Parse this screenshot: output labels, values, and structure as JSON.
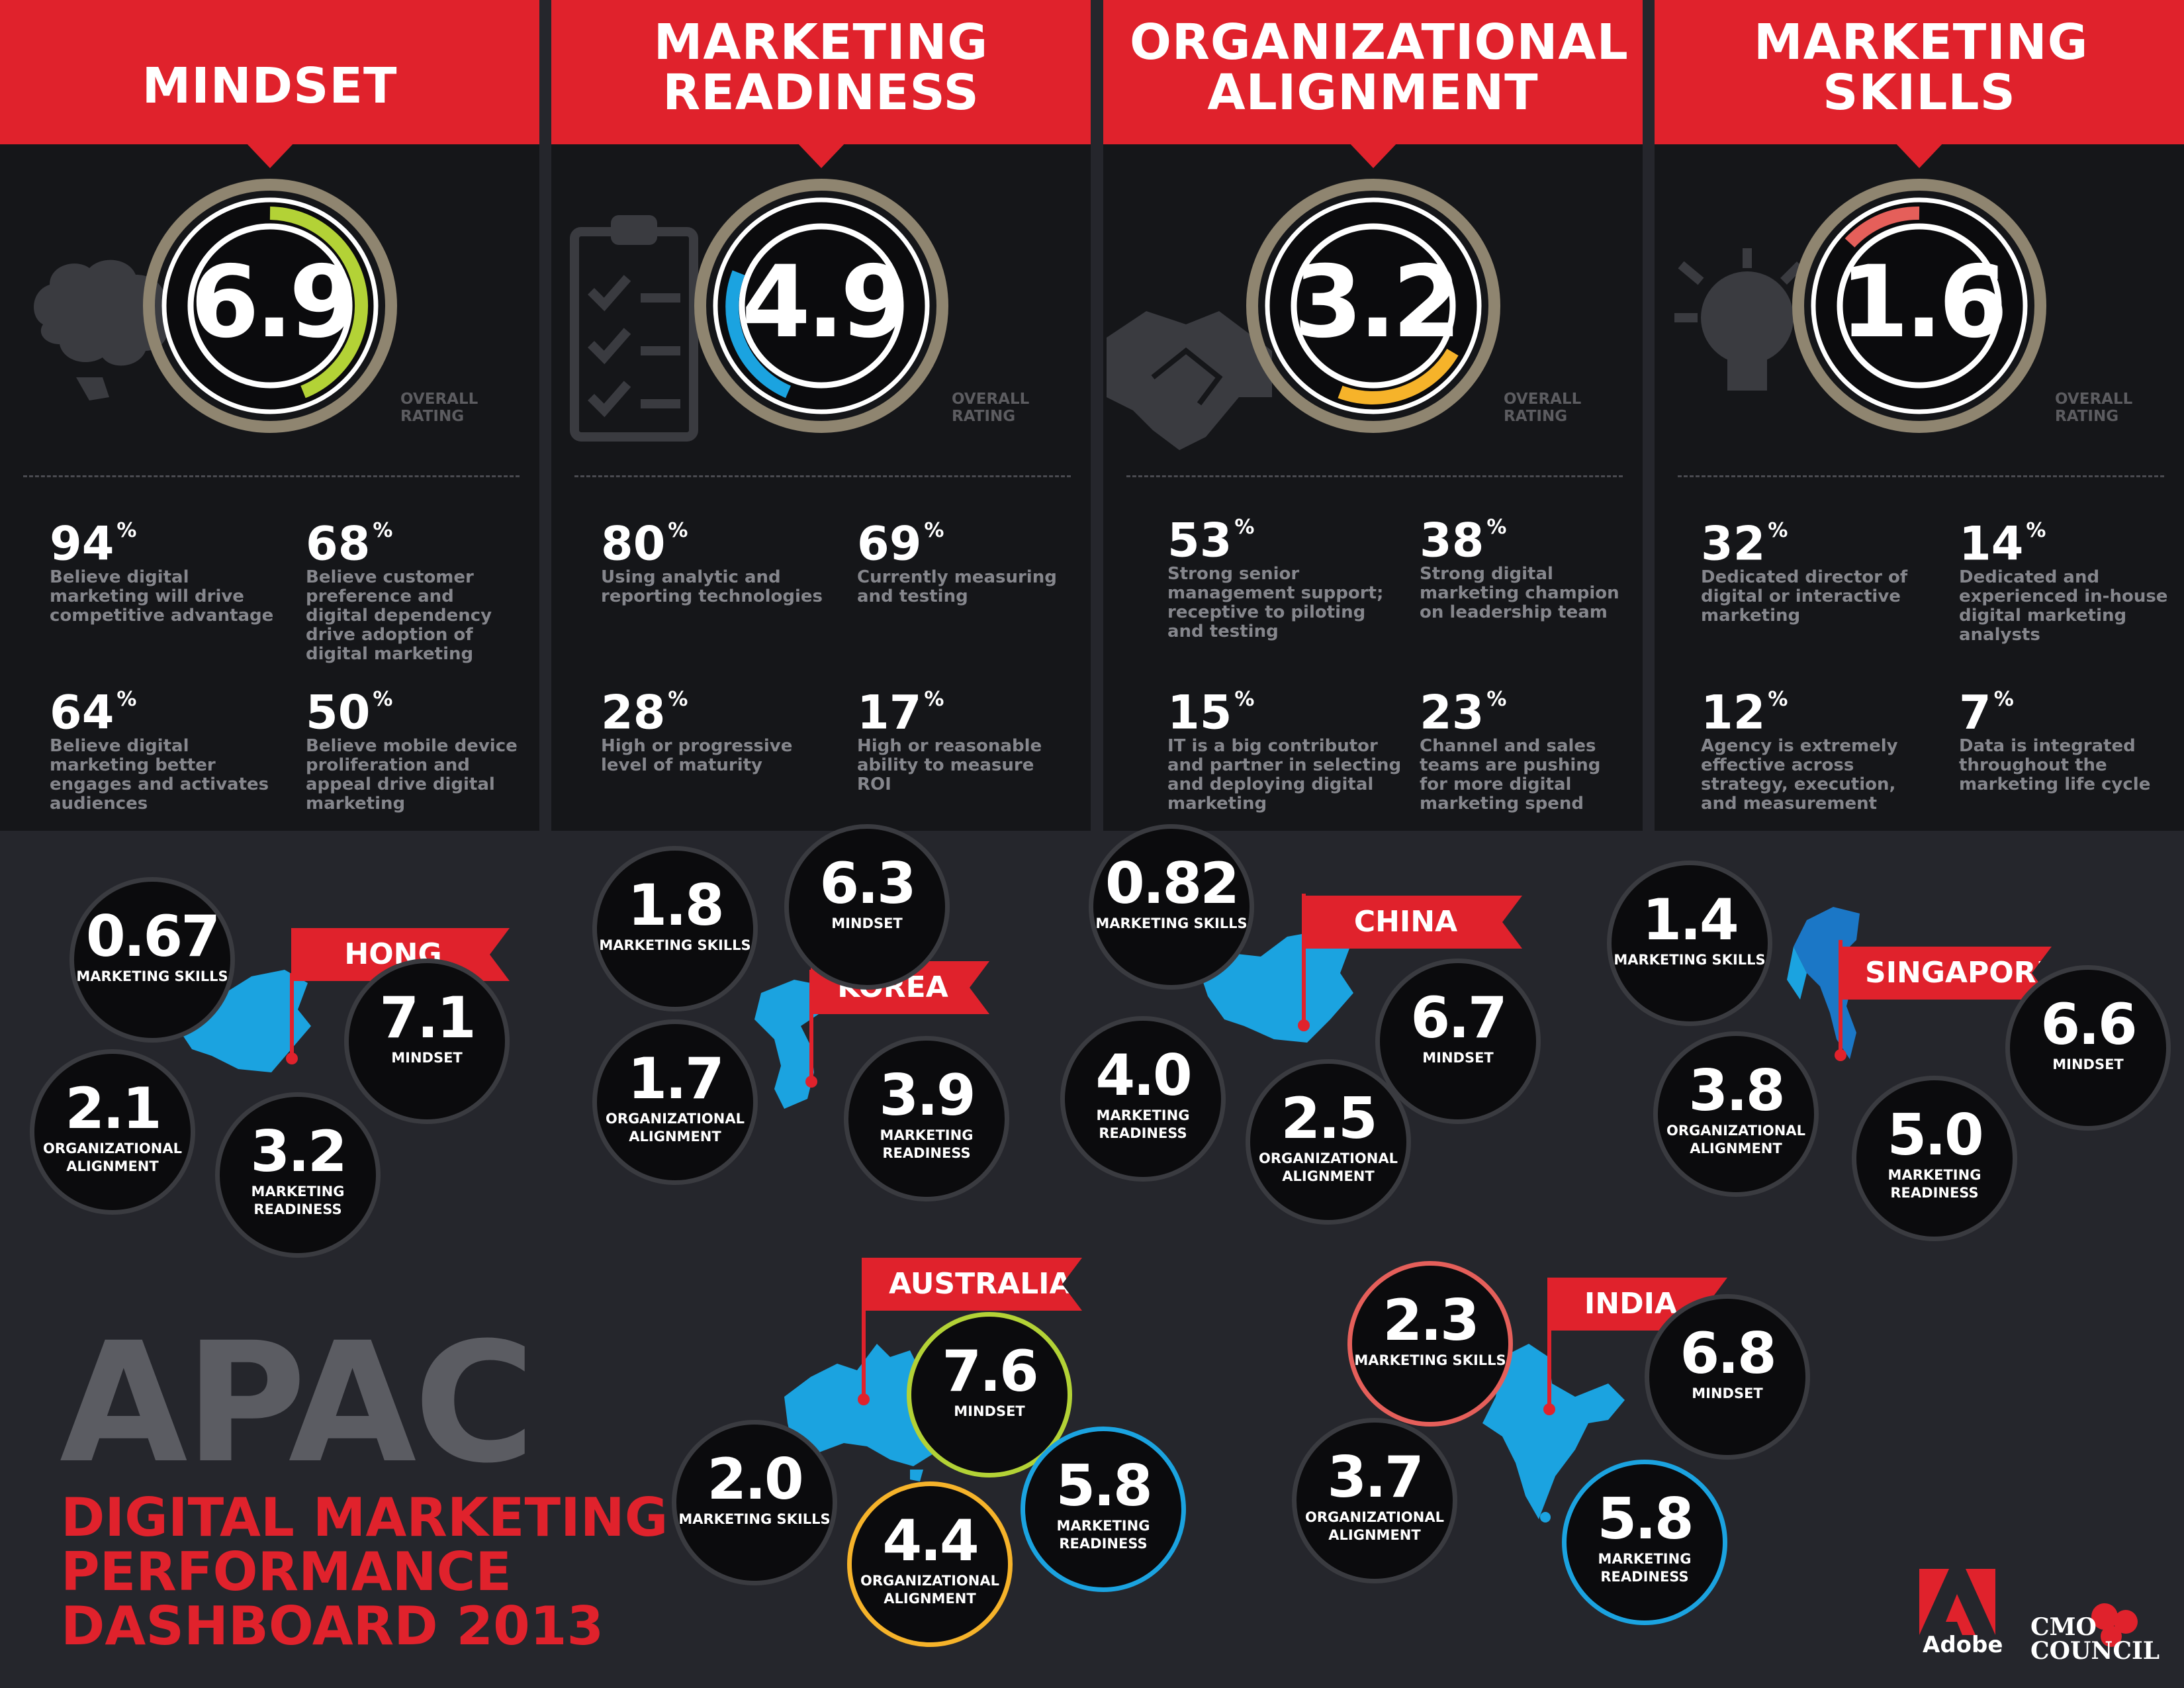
{
  "categories": [
    {
      "title": "Mindset",
      "rating": "6.9",
      "rating_caption": "OVERALL RATING",
      "ring_color": "#b3d236",
      "icon": "brain-icon",
      "stats": [
        {
          "pct": "94",
          "unit": "%",
          "desc": "Believe digital marketing will drive competitive advantage"
        },
        {
          "pct": "68",
          "unit": "%",
          "desc": "Believe customer preference and digital dependency drive adoption of digital marketing"
        },
        {
          "pct": "64",
          "unit": "%",
          "desc": "Believe digital marketing better engages and activates audiences"
        },
        {
          "pct": "50",
          "unit": "%",
          "desc": "Believe mobile device proliferation and appeal drive digital marketing"
        }
      ]
    },
    {
      "title": "Marketing Readiness",
      "rating": "4.9",
      "rating_caption": "OVERALL RATING",
      "ring_color": "#1ba3e0",
      "icon": "clipboard-checklist-icon",
      "stats": [
        {
          "pct": "80",
          "unit": "%",
          "desc": "Using analytic and reporting technologies"
        },
        {
          "pct": "69",
          "unit": "%",
          "desc": "Currently measuring and testing"
        },
        {
          "pct": "28",
          "unit": "%",
          "desc": "High or progressive level of maturity"
        },
        {
          "pct": "17",
          "unit": "%",
          "desc": "High or reasonable ability to measure ROI"
        }
      ]
    },
    {
      "title": "Organizational Alignment",
      "rating": "3.2",
      "rating_caption": "OVERALL RATING",
      "ring_color": "#f6b32a",
      "icon": "handshake-icon",
      "stats": [
        {
          "pct": "53",
          "unit": "%",
          "desc": "Strong senior management support; receptive to piloting and testing"
        },
        {
          "pct": "38",
          "unit": "%",
          "desc": "Strong digital marketing champion on leadership team"
        },
        {
          "pct": "15",
          "unit": "%",
          "desc": "IT is a big contributor and partner in selecting and deploying digital marketing"
        },
        {
          "pct": "23",
          "unit": "%",
          "desc": "Channel and sales teams are pushing for more digital marketing spend"
        }
      ]
    },
    {
      "title": "Marketing Skills",
      "rating": "1.6",
      "rating_caption": "OVERALL RATING",
      "ring_color": "#e55f5a",
      "icon": "lightbulb-icon",
      "stats": [
        {
          "pct": "32",
          "unit": "%",
          "desc": "Dedicated director of digital or interactive marketing"
        },
        {
          "pct": "14",
          "unit": "%",
          "desc": "Dedicated and experienced in-house digital marketing analysts"
        },
        {
          "pct": "12",
          "unit": "%",
          "desc": "Agency is extremely effective across strategy, execution, and measurement"
        },
        {
          "pct": "7",
          "unit": "%",
          "desc": "Data is integrated throughout the marketing life cycle"
        }
      ]
    }
  ],
  "countries": [
    {
      "name": "Hong Kong",
      "map_icon": "china-map-icon",
      "metrics": [
        {
          "value": "0.67",
          "label": "MARKETING SKILLS"
        },
        {
          "value": "7.1",
          "label": "MINDSET"
        },
        {
          "value": "2.1",
          "label": "ORGANIZATIONAL ALIGNMENT"
        },
        {
          "value": "3.2",
          "label": "MARKETING READINESS"
        }
      ]
    },
    {
      "name": "Korea",
      "map_icon": "korea-map-icon",
      "metrics": [
        {
          "value": "1.8",
          "label": "MARKETING SKILLS"
        },
        {
          "value": "6.3",
          "label": "MINDSET"
        },
        {
          "value": "1.7",
          "label": "ORGANIZATIONAL ALIGNMENT"
        },
        {
          "value": "3.9",
          "label": "MARKETING READINESS"
        }
      ]
    },
    {
      "name": "China",
      "map_icon": "china-map-icon",
      "metrics": [
        {
          "value": "0.82",
          "label": "MARKETING SKILLS"
        },
        {
          "value": "6.7",
          "label": "MINDSET"
        },
        {
          "value": "4.0",
          "label": "MARKETING READINESS"
        },
        {
          "value": "2.5",
          "label": "ORGANIZATIONAL ALIGNMENT"
        }
      ]
    },
    {
      "name": "Singapore",
      "map_icon": "southeast-asia-map-icon",
      "metrics": [
        {
          "value": "1.4",
          "label": "MARKETING SKILLS"
        },
        {
          "value": "6.6",
          "label": "MINDSET"
        },
        {
          "value": "3.8",
          "label": "ORGANIZATIONAL ALIGNMENT"
        },
        {
          "value": "5.0",
          "label": "MARKETING READINESS"
        }
      ]
    },
    {
      "name": "Australia",
      "map_icon": "australia-map-icon",
      "metrics": [
        {
          "value": "7.6",
          "label": "MINDSET",
          "ring": "#b3d236"
        },
        {
          "value": "2.0",
          "label": "MARKETING SKILLS"
        },
        {
          "value": "4.4",
          "label": "ORGANIZATIONAL ALIGNMENT",
          "ring": "#f6b32a"
        },
        {
          "value": "5.8",
          "label": "MARKETING READINESS",
          "ring": "#1ba3e0"
        }
      ]
    },
    {
      "name": "India",
      "map_icon": "india-map-icon",
      "metrics": [
        {
          "value": "2.3",
          "label": "MARKETING SKILLS",
          "ring": "#e55f5a"
        },
        {
          "value": "6.8",
          "label": "MINDSET"
        },
        {
          "value": "3.7",
          "label": "ORGANIZATIONAL ALIGNMENT"
        },
        {
          "value": "5.8",
          "label": "MARKETING READINESS",
          "ring": "#1ba3e0"
        }
      ]
    }
  ],
  "footer": {
    "region": "APAC",
    "subtitle": [
      "DIGITAL MARKETING",
      "PERFORMANCE",
      "DASHBOARD 2013"
    ],
    "adobe": "Adobe",
    "cmo_line1": "CMO",
    "cmo_line2": "COUNCIL"
  },
  "colors": {
    "accent_red": "#e0222c",
    "map_blue": "#1ba3e0",
    "panel_bg": "#151619",
    "page_bg": "#25262c"
  }
}
